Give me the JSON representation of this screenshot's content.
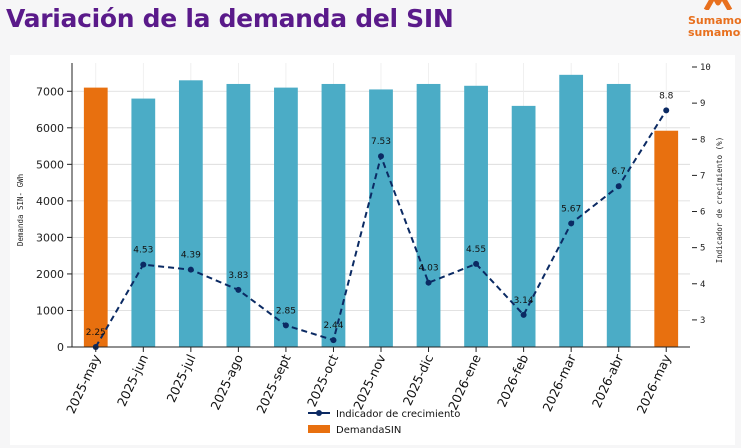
{
  "page": {
    "title": "Variación de la demanda del SIN"
  },
  "brand": {
    "line1": "Sumamos",
    "line2": "sumamos",
    "logo_icon": "brand-logo-mark",
    "color": "#e8701e"
  },
  "colors": {
    "highlight_bar": "#e8700f",
    "regular_bar": "#4bacc6",
    "line": "#0b2a63",
    "title": "#5a1a8a"
  },
  "chart_data": {
    "type": "bar",
    "combo": "bar+line",
    "categories": [
      "2025-may",
      "2025-jun",
      "2025-jul",
      "2025-ago",
      "2025-sept",
      "2025-oct",
      "2025-nov",
      "2025-dic",
      "2026-ene",
      "2026-feb",
      "2026-mar",
      "2026-abr",
      "2026-may"
    ],
    "series": [
      {
        "name": "DemandaSIN",
        "type": "bar",
        "axis": "left",
        "values": [
          7100,
          6800,
          7300,
          7200,
          7100,
          7200,
          7050,
          7200,
          7150,
          6600,
          7450,
          7200,
          5920
        ],
        "highlighted": [
          true,
          false,
          false,
          false,
          false,
          false,
          false,
          false,
          false,
          false,
          false,
          false,
          true
        ]
      },
      {
        "name": "Indicador de crecimiento",
        "type": "line",
        "style": "dashed with markers",
        "axis": "right",
        "values": [
          2.25,
          4.53,
          4.39,
          3.83,
          2.85,
          2.44,
          7.53,
          4.03,
          4.55,
          3.14,
          5.67,
          6.7,
          8.8
        ],
        "data_labels": [
          "2.25",
          "4.53",
          "4.39",
          "3.83",
          "2.85",
          "2.44",
          "7.53",
          "4.03",
          "4.55",
          "3.14",
          "5.67",
          "6.7",
          "8.8"
        ]
      }
    ],
    "ylabel": "Demanda SIN- GWh",
    "y2label": "Indicador de crecimiento (%)",
    "ylim": [
      0,
      7500
    ],
    "y2lim": [
      2.25,
      10
    ],
    "yticks": [
      "0",
      "1000",
      "2000",
      "3000",
      "4000",
      "5000",
      "6000",
      "7000"
    ],
    "y2ticks": [
      "3",
      "4",
      "5",
      "6",
      "7",
      "8",
      "9",
      "10"
    ],
    "grid": "horizontal",
    "legend_position": "bottom-center",
    "legend": [
      "Indicador de crecimiento",
      "DemandaSIN"
    ]
  }
}
